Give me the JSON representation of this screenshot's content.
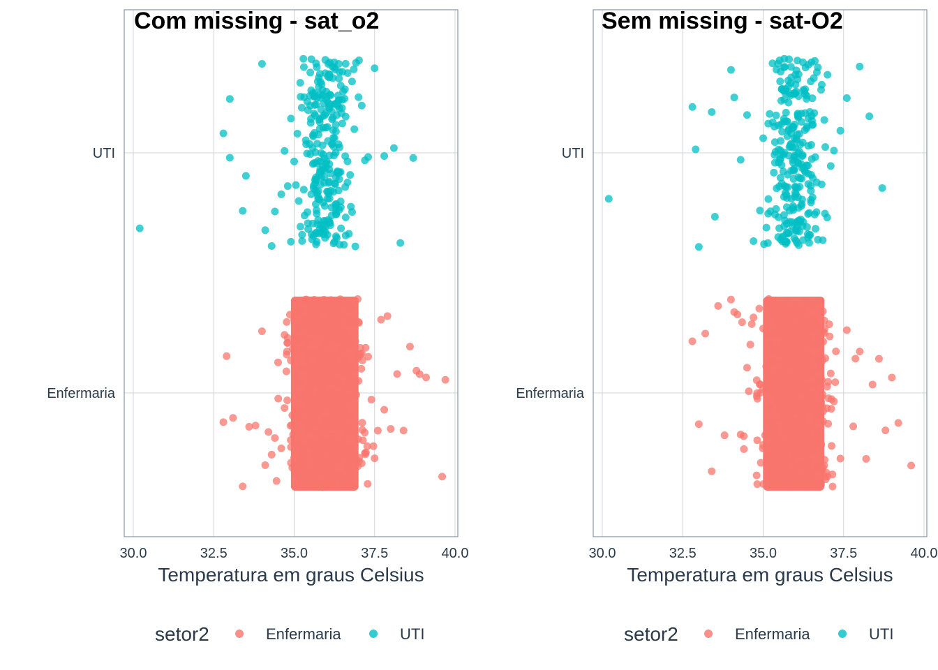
{
  "colors": {
    "Enfermaria": "#F8766D",
    "UTI": "#00BFC4",
    "grid": "#d0d4d8",
    "panel_border": "#8a94a0",
    "text": "#2b3a4a"
  },
  "chart_data": [
    {
      "type": "scatter",
      "title": "Com missing - sat_o2",
      "xlabel": "Temperatura em graus Celsius",
      "ylabel": "",
      "xlim": [
        30.0,
        40.0
      ],
      "x_ticks": [
        "30.0",
        "32.5",
        "35.0",
        "37.5",
        "40.0"
      ],
      "y_categories": [
        "Enfermaria",
        "UTI"
      ],
      "grid": true,
      "legend": {
        "title": "setor2",
        "position": "bottom",
        "entries": [
          "Enfermaria",
          "UTI"
        ]
      },
      "series": [
        {
          "name": "Enfermaria",
          "category": "Enfermaria",
          "x": [
            32.8,
            32.9,
            33.1,
            33.4,
            33.6,
            33.8,
            34.0,
            34.1,
            34.2,
            34.3,
            34.4,
            34.5,
            34.6,
            34.7,
            34.7,
            34.8,
            34.8,
            34.9,
            34.9,
            35.0,
            35.0,
            35.1,
            35.2,
            35.3,
            35.4,
            35.5,
            35.6,
            35.7,
            35.8,
            35.9,
            36.0,
            36.1,
            36.2,
            36.3,
            36.4,
            36.5,
            36.6,
            36.7,
            36.8,
            36.9,
            37.0,
            37.1,
            37.2,
            37.3,
            37.4,
            37.5,
            37.6,
            37.7,
            37.8,
            37.9,
            38.0,
            38.2,
            38.4,
            38.6,
            38.8,
            38.9,
            39.1,
            39.6,
            39.7
          ],
          "note_density": "dense band 34.8–37.1"
        },
        {
          "name": "UTI",
          "category": "UTI",
          "x": [
            30.2,
            32.8,
            33.0,
            33.0,
            33.4,
            33.5,
            34.0,
            34.1,
            34.3,
            34.4,
            34.6,
            34.7,
            34.8,
            34.9,
            35.0,
            35.1,
            35.2,
            35.3,
            35.4,
            35.5,
            35.6,
            35.7,
            35.8,
            35.9,
            36.0,
            36.1,
            36.2,
            36.3,
            36.4,
            36.5,
            36.6,
            36.7,
            36.8,
            36.9,
            37.0,
            37.1,
            37.2,
            37.3,
            37.5,
            37.8,
            38.1,
            38.3,
            38.7
          ]
        }
      ]
    },
    {
      "type": "scatter",
      "title": "Sem missing - sat-O2",
      "xlabel": "Temperatura em graus Celsius",
      "ylabel": "",
      "xlim": [
        30.0,
        40.0
      ],
      "x_ticks": [
        "30.0",
        "32.5",
        "35.0",
        "37.5",
        "40.0"
      ],
      "y_categories": [
        "Enfermaria",
        "UTI"
      ],
      "grid": true,
      "legend": {
        "title": "setor2",
        "position": "bottom",
        "entries": [
          "Enfermaria",
          "UTI"
        ]
      },
      "series": [
        {
          "name": "Enfermaria",
          "category": "Enfermaria",
          "x": [
            32.8,
            33.0,
            33.2,
            33.4,
            33.6,
            33.8,
            34.0,
            34.1,
            34.2,
            34.3,
            34.4,
            34.5,
            34.6,
            34.7,
            34.8,
            34.9,
            35.0,
            35.1,
            35.2,
            35.3,
            35.4,
            35.5,
            35.6,
            35.7,
            35.8,
            35.9,
            36.0,
            36.1,
            36.2,
            36.3,
            36.4,
            36.5,
            36.6,
            36.7,
            36.8,
            36.9,
            37.0,
            37.1,
            37.2,
            37.4,
            37.6,
            37.8,
            38.0,
            38.2,
            38.4,
            38.6,
            38.8,
            39.0,
            39.2,
            39.6
          ],
          "note_density": "dense band 35.0–37.0"
        },
        {
          "name": "UTI",
          "category": "UTI",
          "x": [
            30.2,
            32.8,
            32.9,
            33.0,
            33.4,
            33.5,
            34.0,
            34.1,
            34.3,
            34.5,
            34.7,
            34.9,
            35.0,
            35.1,
            35.2,
            35.3,
            35.4,
            35.5,
            35.6,
            35.7,
            35.8,
            35.9,
            36.0,
            36.1,
            36.2,
            36.3,
            36.4,
            36.5,
            36.6,
            36.7,
            36.8,
            36.9,
            37.0,
            37.1,
            37.2,
            37.4,
            37.6,
            38.0,
            38.3,
            38.7
          ]
        }
      ]
    }
  ]
}
